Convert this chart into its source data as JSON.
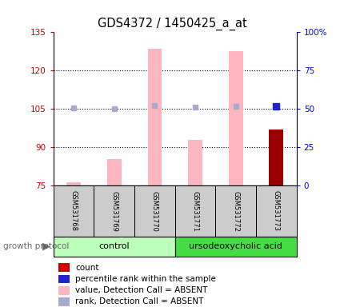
{
  "title": "GDS4372 / 1450425_a_at",
  "samples": [
    "GSM531768",
    "GSM531769",
    "GSM531770",
    "GSM531771",
    "GSM531772",
    "GSM531773"
  ],
  "bar_values_absent": [
    76.5,
    85.5,
    128.5,
    93.0,
    127.5,
    null
  ],
  "bar_value_present": [
    null,
    null,
    null,
    null,
    null,
    97.0
  ],
  "rank_absent": [
    105.3,
    105.2,
    106.5,
    105.8,
    106.0,
    null
  ],
  "rank_present": [
    null,
    null,
    null,
    null,
    null,
    106.0
  ],
  "left_ylim": [
    75,
    135
  ],
  "left_yticks": [
    75,
    90,
    105,
    120,
    135
  ],
  "right_ylim": [
    0,
    100
  ],
  "right_yticks": [
    0,
    25,
    50,
    75,
    100
  ],
  "right_yticklabels": [
    "0",
    "25",
    "50",
    "75",
    "100%"
  ],
  "bar_width": 0.35,
  "pink_bar_color": "#FFB6C1",
  "dark_red_bar_color": "#990000",
  "rank_absent_color": "#AAAACC",
  "rank_present_color": "#2222CC",
  "control_group_color": "#BBFFBB",
  "ursodeo_group_color": "#44DD44",
  "sample_box_color": "#CCCCCC",
  "legend_items": [
    {
      "label": "count",
      "color": "#CC0000"
    },
    {
      "label": "percentile rank within the sample",
      "color": "#2222CC"
    },
    {
      "label": "value, Detection Call = ABSENT",
      "color": "#FFB6C1"
    },
    {
      "label": "rank, Detection Call = ABSENT",
      "color": "#AAAACC"
    }
  ],
  "dotted_lines": [
    90,
    105,
    120
  ],
  "title_fontsize": 10.5,
  "tick_fontsize": 7.5,
  "label_fontsize": 7.5,
  "sample_fontsize": 6.0,
  "group_fontsize": 8.0
}
